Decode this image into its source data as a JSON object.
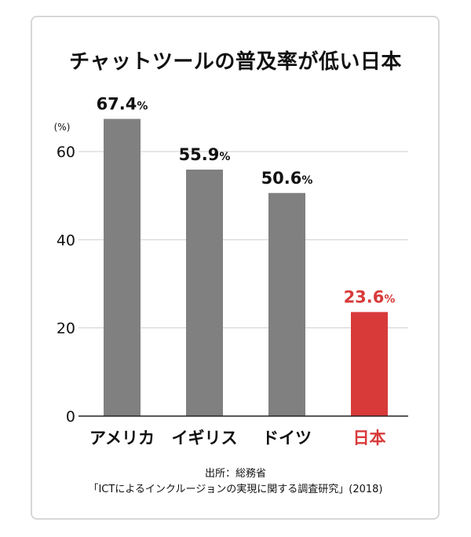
{
  "chart_data": {
    "type": "bar",
    "title": "チャットツールの普及率が低い日本",
    "unit_label": "(%)",
    "categories": [
      "アメリカ",
      "イギリス",
      "ドイツ",
      "日本"
    ],
    "values": [
      67.4,
      55.9,
      50.6,
      23.6
    ],
    "value_labels": [
      "67.4%",
      "55.9%",
      "50.6%",
      "23.6%"
    ],
    "ylim": [
      0,
      60
    ],
    "y_ticks": [
      0,
      20,
      40,
      60
    ],
    "grid": true,
    "colors": {
      "default_bar": "#808080",
      "highlight_bar": "#d83a3a",
      "highlight_text": "#d83a3a",
      "grid": "#cfcfcf",
      "axis": "#222222"
    },
    "highlight_index": 3
  },
  "source": {
    "line1": "出所：総務省",
    "line2": "「ICTによるインクルージョンの実現に関する調査研究」(2018)"
  }
}
